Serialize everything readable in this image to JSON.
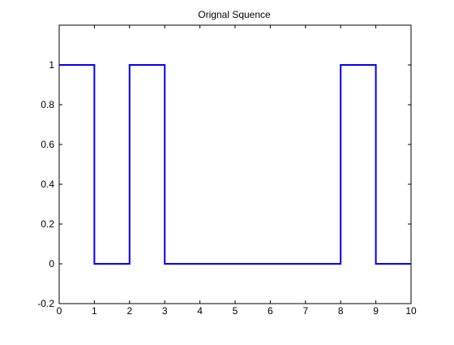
{
  "chart_data": {
    "type": "line",
    "title": "Orignal Squence",
    "xlabel": "",
    "ylabel": "",
    "xlim": [
      0,
      10
    ],
    "ylim": [
      -0.2,
      1.2
    ],
    "x_ticks": [
      "0",
      "1",
      "2",
      "3",
      "4",
      "5",
      "6",
      "7",
      "8",
      "9",
      "10"
    ],
    "y_ticks": [
      "-0.2",
      "0",
      "0.2",
      "0.4",
      "0.6",
      "0.8",
      "1"
    ],
    "grid": false,
    "series": [
      {
        "color": "#0000ff",
        "step": true,
        "x": [
          0,
          1,
          1,
          2,
          2,
          3,
          3,
          8,
          8,
          9,
          9,
          10
        ],
        "y": [
          1,
          1,
          0,
          0,
          1,
          1,
          0,
          0,
          1,
          1,
          0,
          0
        ]
      }
    ]
  }
}
